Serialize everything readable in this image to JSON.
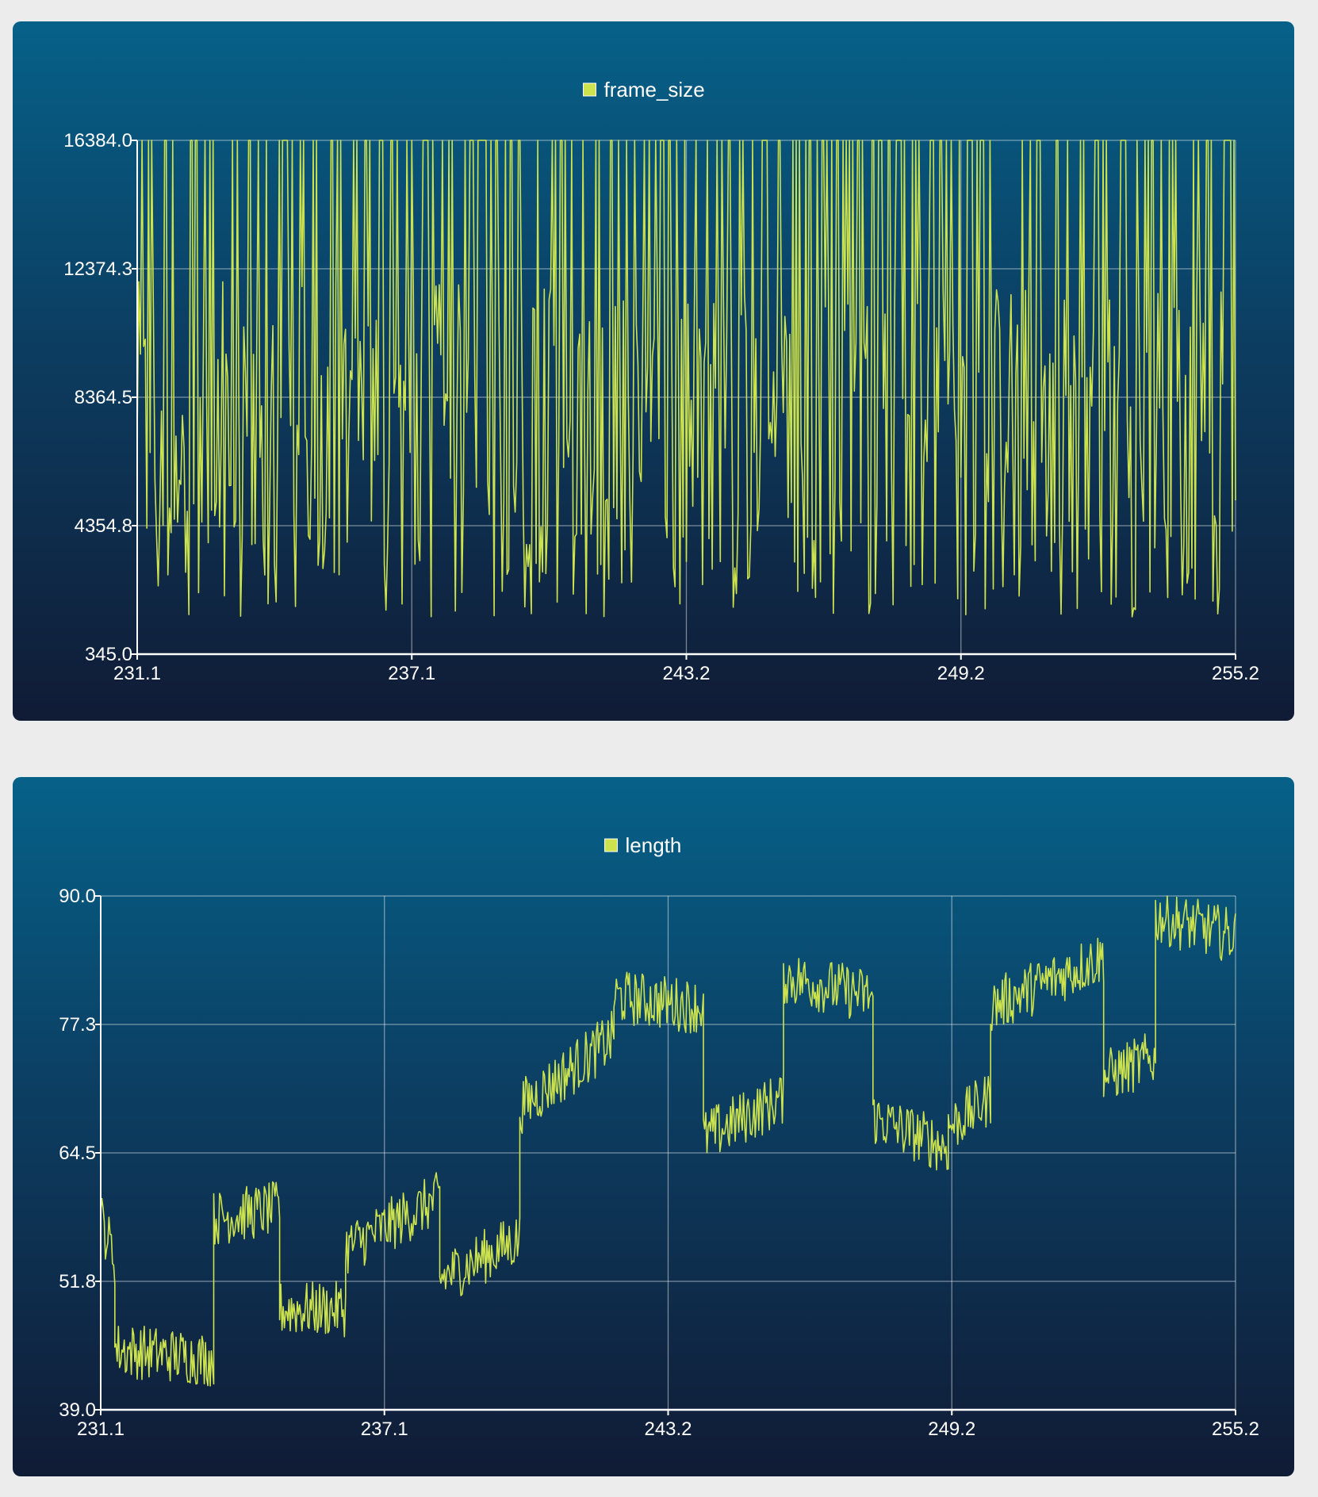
{
  "chart_data": [
    {
      "type": "line",
      "series": [
        {
          "name": "frame_size",
          "color": "#cde34e"
        }
      ],
      "legend_position": "top-center",
      "grid": true,
      "xlim": [
        231.1,
        255.2
      ],
      "ylim": [
        345.0,
        16384.0
      ],
      "x_ticks": [
        "231.1",
        "237.1",
        "243.2",
        "249.2",
        "255.2"
      ],
      "y_ticks": [
        "345.0",
        "4354.8",
        "8364.5",
        "12374.3",
        "16384.0"
      ],
      "pattern": "dense oscillation: many samples at 16384, most between ~2000 and ~12000"
    },
    {
      "type": "line",
      "series": [
        {
          "name": "length",
          "color": "#cde34e"
        }
      ],
      "legend_position": "top-center",
      "grid": true,
      "xlim": [
        231.1,
        255.2
      ],
      "ylim": [
        39.0,
        90.0
      ],
      "x_ticks": [
        "231.1",
        "237.1",
        "243.2",
        "249.2",
        "255.2"
      ],
      "y_ticks": [
        "39.0",
        "51.8",
        "64.5",
        "77.3",
        "90.0"
      ],
      "segments": [
        {
          "x": [
            231.1,
            231.4
          ],
          "y": [
            58,
            54
          ]
        },
        {
          "x": [
            231.4,
            233.5
          ],
          "y": [
            45,
            44
          ]
        },
        {
          "x": [
            233.5,
            234.9
          ],
          "y": [
            58,
            59
          ]
        },
        {
          "x": [
            234.9,
            236.3
          ],
          "y": [
            49,
            49
          ]
        },
        {
          "x": [
            236.3,
            238.3
          ],
          "y": [
            55,
            60
          ]
        },
        {
          "x": [
            238.3,
            240.0
          ],
          "y": [
            52,
            56
          ]
        },
        {
          "x": [
            240.0,
            242.0
          ],
          "y": [
            69,
            76
          ]
        },
        {
          "x": [
            242.0,
            243.9
          ],
          "y": [
            80,
            79
          ]
        },
        {
          "x": [
            243.9,
            245.6
          ],
          "y": [
            66,
            70
          ]
        },
        {
          "x": [
            245.6,
            247.5
          ],
          "y": [
            82,
            80
          ]
        },
        {
          "x": [
            247.5,
            249.1
          ],
          "y": [
            68,
            65
          ]
        },
        {
          "x": [
            249.1,
            250.0
          ],
          "y": [
            67,
            70
          ]
        },
        {
          "x": [
            250.0,
            252.4
          ],
          "y": [
            79,
            84
          ]
        },
        {
          "x": [
            252.4,
            253.5
          ],
          "y": [
            72,
            74
          ]
        },
        {
          "x": [
            253.5,
            255.2
          ],
          "y": [
            88,
            86
          ]
        }
      ]
    }
  ]
}
